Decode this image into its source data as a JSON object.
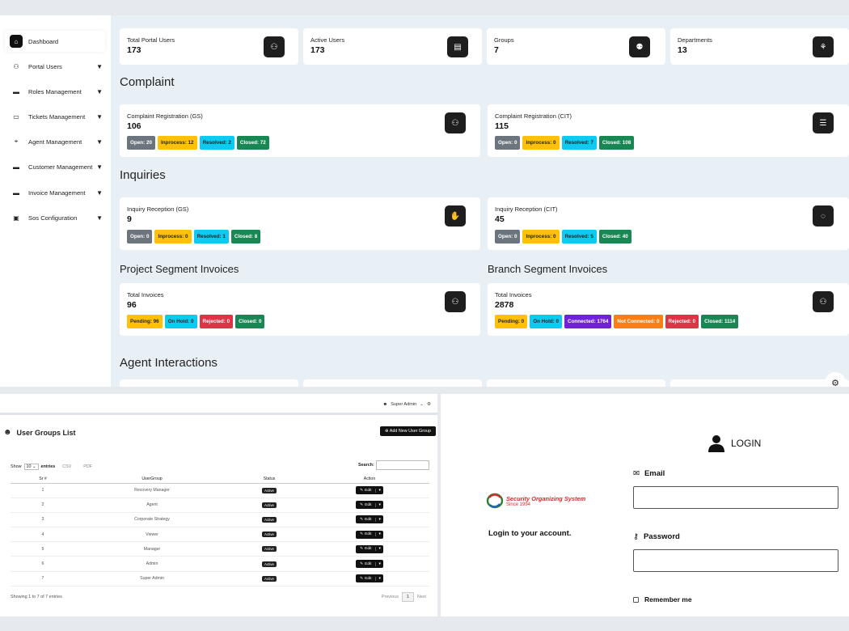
{
  "sidebar": {
    "items": [
      {
        "label": "Dashboard",
        "icon": "home-icon"
      },
      {
        "label": "Portal Users",
        "icon": "users-icon"
      },
      {
        "label": "Roles Management",
        "icon": "roles-icon"
      },
      {
        "label": "Tickets Management",
        "icon": "ticket-icon"
      },
      {
        "label": "Agent Management",
        "icon": "agent-icon"
      },
      {
        "label": "Customer Management",
        "icon": "customer-icon"
      },
      {
        "label": "Invoice Management",
        "icon": "invoice-icon"
      },
      {
        "label": "Sos Configuration",
        "icon": "sos-icon"
      }
    ],
    "arrow": "▼"
  },
  "stats": [
    {
      "label": "Total Portal Users",
      "value": "173"
    },
    {
      "label": "Active Users",
      "value": "173"
    },
    {
      "label": "Groups",
      "value": "7"
    },
    {
      "label": "Departments",
      "value": "13"
    }
  ],
  "sections": {
    "complaint": "Complaint",
    "inquiries": "Inquiries",
    "project_invoices": "Project Segment Invoices",
    "branch_invoices": "Branch Segment Invoices",
    "agent_interactions": "Agent Interactions"
  },
  "complaint_cards": [
    {
      "title": "Complaint Registration (GS)",
      "value": "106",
      "badges": [
        "Open: 20",
        "Inprocess: 12",
        "Resolved: 2",
        "Closed: 72"
      ]
    },
    {
      "title": "Complaint Registration (CIT)",
      "value": "115",
      "badges": [
        "Open: 0",
        "Inprocess: 0",
        "Resolved: 7",
        "Closed: 108"
      ]
    }
  ],
  "inquiry_cards": [
    {
      "title": "Inquiry Reception (GS)",
      "value": "9",
      "badges": [
        "Open: 0",
        "Inprocess: 0",
        "Resolved: 1",
        "Closed: 8"
      ]
    },
    {
      "title": "Inquiry Reception (CIT)",
      "value": "45",
      "badges": [
        "Open: 0",
        "Inprocess: 0",
        "Resolved: 5",
        "Closed: 40"
      ]
    }
  ],
  "invoice_cards": [
    {
      "title": "Total Invoices",
      "value": "96",
      "badges": [
        "Pending: 96",
        "On Hold: 0",
        "Rejected: 0",
        "Closed: 0"
      ]
    },
    {
      "title": "Total Invoices",
      "value": "2878",
      "badges": [
        "Pending: 0",
        "On Hold: 0",
        "Connected: 1764",
        "Not Connected: 0",
        "Rejected: 0",
        "Closed: 1114"
      ]
    }
  ],
  "user_groups": {
    "user_menu": "Super Admin",
    "title": "User Groups List",
    "add_button": "Add New User Group",
    "show": "Show",
    "entries_value": "10",
    "entries": "entries",
    "csv": "CSV",
    "pdf": "PDF",
    "search": "Search:",
    "columns": [
      "Sr #",
      "UserGroup",
      "Status",
      "Action"
    ],
    "rows": [
      {
        "sr": "1",
        "group": "Recovery Manager",
        "status": "Active"
      },
      {
        "sr": "2",
        "group": "Agent",
        "status": "Active"
      },
      {
        "sr": "3",
        "group": "Corporate Strategy",
        "status": "Active"
      },
      {
        "sr": "4",
        "group": "Viewer",
        "status": "Active"
      },
      {
        "sr": "5",
        "group": "Manager",
        "status": "Active"
      },
      {
        "sr": "6",
        "group": "Admin",
        "status": "Active"
      },
      {
        "sr": "7",
        "group": "Super Admin",
        "status": "Active"
      }
    ],
    "edit": "Edit",
    "info": "Showing 1 to 7 of 7 entries",
    "previous": "Previous",
    "page": "1",
    "next": "Next"
  },
  "login": {
    "logo_line1": "Security Organizing System",
    "logo_line2": "Since 1994",
    "subtitle": "Login to your account.",
    "heading": "LOGIN",
    "email_label": "Email",
    "password_label": "Password",
    "remember": "Remember me"
  },
  "colors": {
    "open": "#6c757d",
    "inprocess": "#ffc107",
    "resolved": "#0dcaf0",
    "closed": "#198754",
    "rejected": "#dc3545",
    "connected": "#6f22d6",
    "not_connected": "#fd7e14"
  }
}
